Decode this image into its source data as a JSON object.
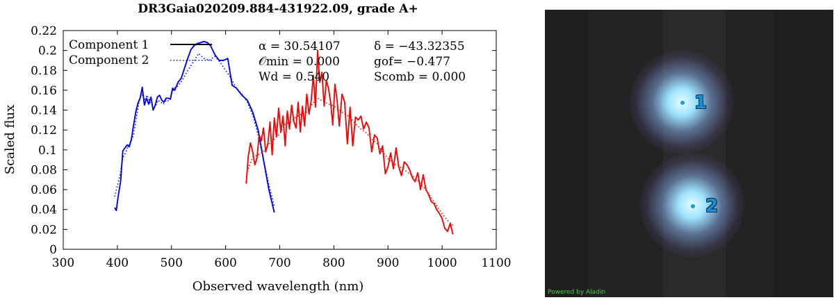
{
  "chart_data": {
    "type": "line",
    "title": "DR3Gaia020209.884-431922.09, grade A+",
    "xlabel": "Observed wavelength (nm)",
    "ylabel": "Scaled flux",
    "xlim": [
      300,
      1100
    ],
    "ylim": [
      0,
      0.22
    ],
    "xticks": [
      "300",
      "400",
      "500",
      "600",
      "700",
      "800",
      "900",
      "1000",
      "1100"
    ],
    "yticks": [
      "0",
      "0.02",
      "0.04",
      "0.06",
      "0.08",
      "0.1",
      "0.12",
      "0.14",
      "0.16",
      "0.18",
      "0.2",
      "0.22"
    ],
    "legend_position": "top-left",
    "legend": [
      {
        "label": "Component 1",
        "style": "solid",
        "color": "#000000"
      },
      {
        "label": "Component 2",
        "style": "dotted",
        "color": "#0000ff"
      }
    ],
    "annotations": {
      "alpha": "α = 30.54107",
      "delta": "δ = −43.32355",
      "omin": "𝒪min = 0.000",
      "gof": "gof= −0.477",
      "wd": "Wd = 0.540",
      "scomb": "Scomb = 0.000"
    },
    "series": [
      {
        "name": "Component 1",
        "band": "BP",
        "color": "#0000ff",
        "style": "solid",
        "x": [
          395,
          398,
          402,
          406,
          410,
          414,
          418,
          422,
          426,
          430,
          434,
          438,
          442,
          446,
          450,
          454,
          458,
          462,
          466,
          470,
          474,
          478,
          482,
          486,
          490,
          494,
          498,
          502,
          506,
          512,
          518,
          524,
          530,
          536,
          542,
          548,
          554,
          560,
          566,
          572,
          580,
          588,
          596,
          604,
          612,
          620,
          630,
          640,
          650,
          660,
          670,
          680,
          690
        ],
        "values": [
          0.042,
          0.039,
          0.055,
          0.068,
          0.099,
          0.102,
          0.105,
          0.103,
          0.111,
          0.125,
          0.138,
          0.147,
          0.152,
          0.163,
          0.145,
          0.152,
          0.146,
          0.153,
          0.14,
          0.145,
          0.153,
          0.155,
          0.15,
          0.148,
          0.152,
          0.152,
          0.151,
          0.162,
          0.16,
          0.168,
          0.172,
          0.182,
          0.192,
          0.201,
          0.205,
          0.207,
          0.208,
          0.209,
          0.208,
          0.205,
          0.196,
          0.19,
          0.19,
          0.192,
          0.165,
          0.162,
          0.155,
          0.15,
          0.138,
          0.12,
          0.09,
          0.06,
          0.037
        ]
      },
      {
        "name": "Component 1 RP",
        "band": "RP",
        "color": "#ff0000",
        "style": "solid",
        "x": [
          638,
          642,
          646,
          650,
          654,
          658,
          662,
          666,
          670,
          674,
          678,
          682,
          686,
          690,
          694,
          698,
          702,
          706,
          710,
          714,
          718,
          722,
          726,
          730,
          734,
          738,
          742,
          746,
          750,
          754,
          758,
          762,
          766,
          770,
          774,
          778,
          782,
          786,
          790,
          794,
          798,
          802,
          806,
          810,
          815,
          820,
          825,
          830,
          835,
          840,
          845,
          850,
          855,
          860,
          865,
          870,
          875,
          880,
          885,
          890,
          895,
          900,
          905,
          910,
          915,
          920,
          925,
          930,
          935,
          940,
          945,
          950,
          955,
          960,
          965,
          970,
          975,
          980,
          985,
          990,
          995,
          1000,
          1005,
          1010,
          1015,
          1020
        ],
        "values": [
          0.066,
          0.094,
          0.107,
          0.098,
          0.085,
          0.092,
          0.115,
          0.109,
          0.122,
          0.098,
          0.106,
          0.128,
          0.095,
          0.132,
          0.113,
          0.142,
          0.118,
          0.134,
          0.104,
          0.139,
          0.121,
          0.145,
          0.129,
          0.122,
          0.148,
          0.118,
          0.144,
          0.124,
          0.156,
          0.136,
          0.149,
          0.175,
          0.143,
          0.2,
          0.168,
          0.178,
          0.144,
          0.17,
          0.162,
          0.148,
          0.125,
          0.166,
          0.15,
          0.124,
          0.156,
          0.148,
          0.106,
          0.143,
          0.104,
          0.133,
          0.13,
          0.134,
          0.121,
          0.128,
          0.122,
          0.098,
          0.115,
          0.112,
          0.096,
          0.104,
          0.076,
          0.083,
          0.097,
          0.081,
          0.102,
          0.083,
          0.074,
          0.088,
          0.085,
          0.08,
          0.072,
          0.068,
          0.077,
          0.06,
          0.075,
          0.06,
          0.055,
          0.048,
          0.046,
          0.04,
          0.036,
          0.031,
          0.021,
          0.018,
          0.026,
          0.015
        ]
      },
      {
        "name": "Component 2",
        "band": "BP",
        "color": "#0000ff",
        "style": "dotted",
        "x": [
          395,
          400,
          405,
          410,
          415,
          420,
          425,
          430,
          435,
          440,
          445,
          450,
          455,
          460,
          465,
          470,
          475,
          480,
          485,
          490,
          495,
          500,
          505,
          510,
          520,
          530,
          540,
          550,
          560,
          570,
          580,
          590,
          600,
          610,
          620,
          630,
          640,
          650,
          660,
          670,
          680,
          690
        ],
        "values": [
          0.053,
          0.064,
          0.075,
          0.092,
          0.097,
          0.104,
          0.108,
          0.115,
          0.132,
          0.148,
          0.157,
          0.15,
          0.155,
          0.148,
          0.145,
          0.143,
          0.15,
          0.148,
          0.146,
          0.15,
          0.149,
          0.156,
          0.162,
          0.163,
          0.17,
          0.18,
          0.188,
          0.197,
          0.192,
          0.19,
          0.194,
          0.188,
          0.18,
          0.172,
          0.162,
          0.156,
          0.148,
          0.135,
          0.115,
          0.09,
          0.065,
          0.043
        ]
      },
      {
        "name": "Component 2 RP",
        "band": "RP",
        "color": "#ff0000",
        "style": "dotted",
        "x": [
          640,
          650,
          660,
          670,
          680,
          690,
          700,
          710,
          720,
          730,
          740,
          750,
          760,
          770,
          780,
          790,
          800,
          810,
          820,
          830,
          840,
          850,
          860,
          870,
          880,
          890,
          900,
          910,
          920,
          930,
          940,
          950,
          960,
          970,
          980,
          990,
          1000,
          1010,
          1020
        ],
        "values": [
          0.078,
          0.093,
          0.095,
          0.098,
          0.106,
          0.111,
          0.116,
          0.126,
          0.128,
          0.133,
          0.136,
          0.138,
          0.146,
          0.152,
          0.149,
          0.146,
          0.144,
          0.14,
          0.136,
          0.133,
          0.126,
          0.121,
          0.117,
          0.111,
          0.106,
          0.098,
          0.091,
          0.086,
          0.084,
          0.08,
          0.076,
          0.072,
          0.066,
          0.06,
          0.052,
          0.044,
          0.036,
          0.029,
          0.024
        ]
      }
    ]
  },
  "sky_image": {
    "background": "#232323",
    "sources": [
      {
        "label": "1",
        "glow_color": "#8fdcff"
      },
      {
        "label": "2",
        "glow_color": "#8fdcff"
      }
    ],
    "marker_color": "#1a9bd6",
    "credit": "Powered by Aladin"
  }
}
